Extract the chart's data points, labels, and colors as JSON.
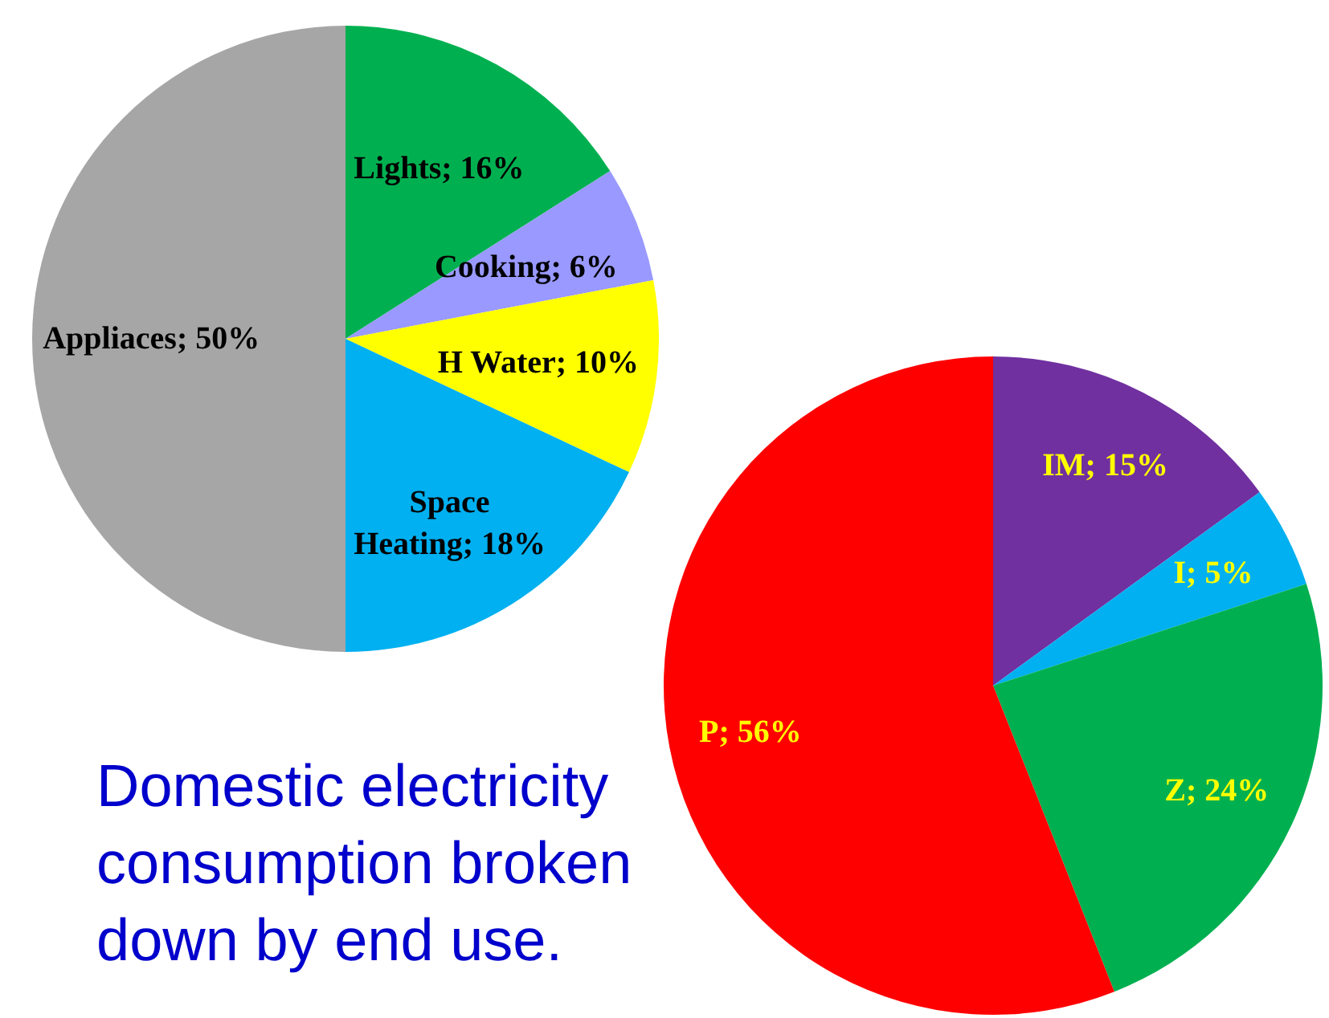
{
  "chart_data": [
    {
      "type": "pie",
      "categories": [
        "Lights",
        "Cooking",
        "H Water",
        "Space Heating",
        "Appliaces"
      ],
      "values": [
        16,
        6,
        10,
        18,
        50
      ],
      "colors": [
        "#00b050",
        "#9999ff",
        "#ffff00",
        "#00b0f0",
        "#a6a6a6"
      ],
      "value_labels": [
        "16%",
        "6%",
        "10%",
        "18%",
        "50%"
      ],
      "annotations": [
        "Domestic electricity consumption broken down by end use."
      ]
    },
    {
      "type": "pie",
      "categories": [
        "IM",
        "I",
        "Z",
        "P"
      ],
      "values": [
        15,
        5,
        24,
        56
      ],
      "colors": [
        "#7030a0",
        "#00b0f0",
        "#00b050",
        "#ff0000"
      ],
      "value_labels": [
        "15%",
        "5%",
        "24%",
        "56%"
      ]
    }
  ]
}
